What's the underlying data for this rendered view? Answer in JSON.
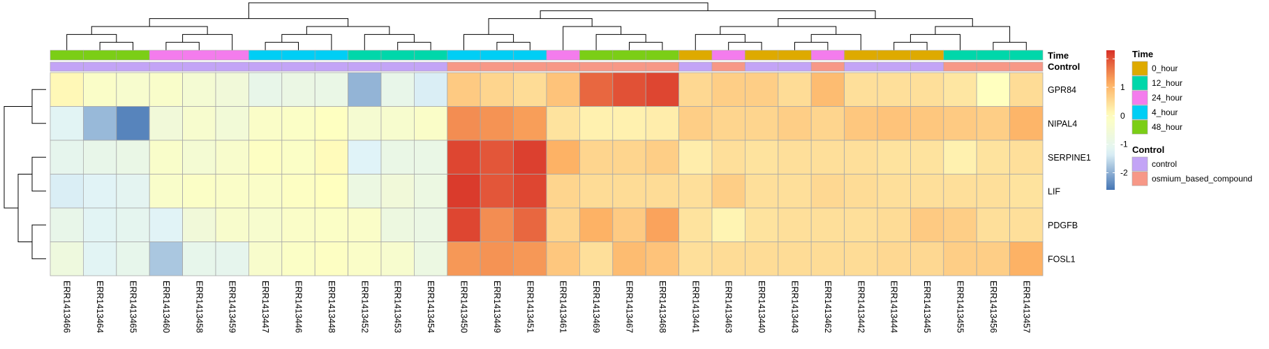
{
  "chart_data": {
    "type": "heatmap",
    "title": "",
    "xlabel": "",
    "ylabel": "",
    "columns": [
      "ERR1413466",
      "ERR1413464",
      "ERR1413465",
      "ERR1413460",
      "ERR1413458",
      "ERR1413459",
      "ERR1413447",
      "ERR1413446",
      "ERR1413448",
      "ERR1413452",
      "ERR1413453",
      "ERR1413454",
      "ERR1413450",
      "ERR1413449",
      "ERR1413451",
      "ERR1413461",
      "ERR1413469",
      "ERR1413467",
      "ERR1413468",
      "ERR1413441",
      "ERR1413463",
      "ERR1413440",
      "ERR1413443",
      "ERR1413462",
      "ERR1413442",
      "ERR1413444",
      "ERR1413445",
      "ERR1413455",
      "ERR1413456",
      "ERR1413457"
    ],
    "rows": [
      "GPR84",
      "NIPAL4",
      "SERPINE1",
      "LIF",
      "PDGFB",
      "FOSL1"
    ],
    "values": [
      [
        0.1,
        -0.2,
        -0.35,
        -0.25,
        -0.45,
        -0.6,
        -0.95,
        -0.85,
        -0.9,
        -1.95,
        -0.95,
        -1.35,
        0.75,
        0.6,
        0.5,
        0.85,
        1.8,
        2.0,
        2.1,
        0.55,
        0.7,
        0.7,
        0.5,
        0.95,
        0.45,
        0.45,
        0.45,
        0.35,
        0.0,
        0.5
      ],
      [
        -1.2,
        -1.9,
        -2.45,
        -0.6,
        -0.35,
        -0.55,
        -0.2,
        -0.15,
        -0.05,
        -0.4,
        -0.35,
        -0.2,
        1.45,
        1.4,
        1.3,
        0.4,
        0.2,
        0.2,
        0.25,
        0.7,
        0.6,
        0.6,
        0.7,
        0.6,
        0.8,
        0.85,
        0.8,
        0.75,
        0.7,
        1.05
      ],
      [
        -1.05,
        -0.95,
        -0.9,
        -0.25,
        -0.45,
        -0.3,
        -0.1,
        -0.15,
        0.05,
        -1.3,
        -0.9,
        -0.9,
        2.1,
        1.95,
        2.15,
        1.1,
        0.6,
        0.6,
        0.7,
        0.25,
        0.45,
        0.4,
        0.45,
        0.45,
        0.45,
        0.4,
        0.4,
        0.2,
        0.4,
        0.45
      ],
      [
        -1.35,
        -1.25,
        -1.15,
        -0.25,
        -0.15,
        -0.2,
        -0.2,
        -0.1,
        0.0,
        -0.8,
        -0.6,
        -0.8,
        2.2,
        1.95,
        2.1,
        0.6,
        0.5,
        0.5,
        0.5,
        0.45,
        0.7,
        0.45,
        0.45,
        0.55,
        0.5,
        0.45,
        0.45,
        0.45,
        0.45,
        0.4
      ],
      [
        -0.95,
        -1.2,
        -1.1,
        -1.25,
        -0.6,
        -0.3,
        -0.35,
        -0.2,
        -0.15,
        -0.2,
        -0.75,
        -0.85,
        2.1,
        1.45,
        1.8,
        0.6,
        1.1,
        0.75,
        1.25,
        0.4,
        0.15,
        0.4,
        0.45,
        0.45,
        0.45,
        0.5,
        0.75,
        0.7,
        0.45,
        0.45
      ],
      [
        -0.7,
        -1.2,
        -1.0,
        -1.75,
        -1.0,
        -1.05,
        -0.3,
        -0.15,
        -0.1,
        -0.2,
        -0.35,
        -0.8,
        1.35,
        1.4,
        1.35,
        0.8,
        0.45,
        0.95,
        0.85,
        0.45,
        0.5,
        0.5,
        0.5,
        0.5,
        0.5,
        0.55,
        0.55,
        0.7,
        0.7,
        1.1
      ]
    ],
    "annotations": {
      "Time": [
        "48_hour",
        "48_hour",
        "48_hour",
        "24_hour",
        "24_hour",
        "24_hour",
        "4_hour",
        "4_hour",
        "4_hour",
        "12_hour",
        "12_hour",
        "12_hour",
        "4_hour",
        "4_hour",
        "4_hour",
        "24_hour",
        "48_hour",
        "48_hour",
        "48_hour",
        "0_hour",
        "24_hour",
        "0_hour",
        "0_hour",
        "24_hour",
        "0_hour",
        "0_hour",
        "0_hour",
        "12_hour",
        "12_hour",
        "12_hour"
      ],
      "Control": [
        "control",
        "control",
        "control",
        "control",
        "control",
        "control",
        "control",
        "control",
        "control",
        "control",
        "control",
        "control",
        "osmium_based_compound",
        "osmium_based_compound",
        "osmium_based_compound",
        "osmium_based_compound",
        "osmium_based_compound",
        "osmium_based_compound",
        "osmium_based_compound",
        "control",
        "osmium_based_compound",
        "control",
        "control",
        "osmium_based_compound",
        "control",
        "control",
        "control",
        "osmium_based_compound",
        "osmium_based_compound",
        "osmium_based_compound"
      ]
    },
    "annotation_titles": [
      "Time",
      "Control"
    ],
    "scale": {
      "title": "",
      "ticks": [
        2,
        1,
        0,
        -1,
        -2
      ],
      "tick_labels": [
        "",
        "1",
        "0",
        "-1",
        "-2"
      ],
      "min": -2.6,
      "max": 2.3,
      "colors": [
        "#4575B4",
        "#E0F3F8",
        "#FFFFBF",
        "#FDAE61",
        "#D73027"
      ]
    },
    "legends": [
      {
        "title": "Time",
        "entries": [
          {
            "label": "0_hour",
            "color": "#DEAA00"
          },
          {
            "label": "12_hour",
            "color": "#00D7AA"
          },
          {
            "label": "24_hour",
            "color": "#F47CED"
          },
          {
            "label": "4_hour",
            "color": "#00CEF5"
          },
          {
            "label": "48_hour",
            "color": "#7BCE16"
          }
        ]
      },
      {
        "title": "Control",
        "entries": [
          {
            "label": "control",
            "color": "#C3A4F6"
          },
          {
            "label": "osmium_based_compound",
            "color": "#F79887"
          }
        ]
      }
    ],
    "grid": true,
    "cell_border_color": "#A8A8A8"
  }
}
